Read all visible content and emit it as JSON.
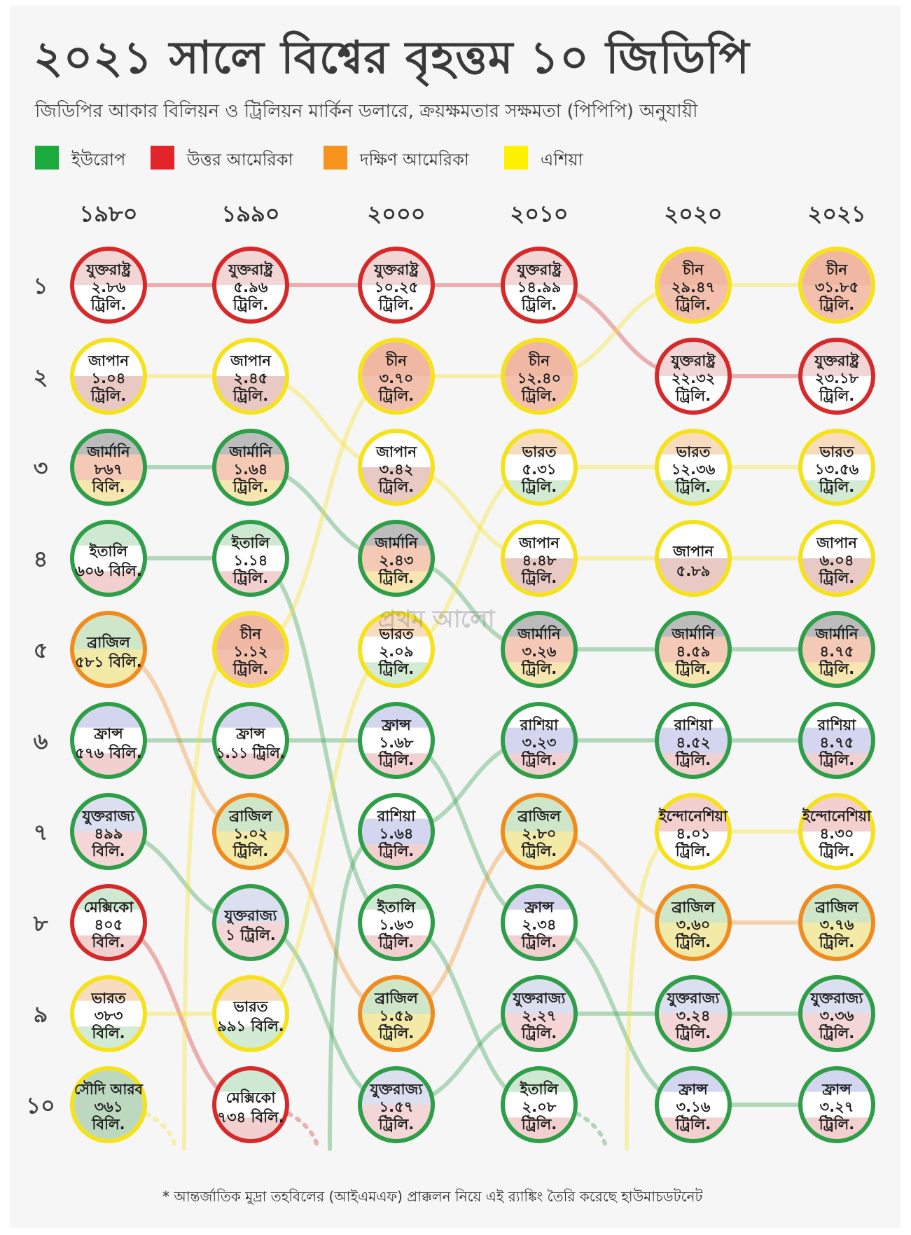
{
  "title": "২০২১ সালে বিশ্বের বৃহত্তম ১০ জিডিপি",
  "subtitle": "জিডিপির আকার বিলিয়ন ও ট্রিলিয়ন মার্কিন ডলারে, ক্রয়ক্ষমতার সক্ষমতা (পিপিপি) অনুযায়ী",
  "legend": [
    {
      "label": "ইউরোপ",
      "color": "#1aab3c"
    },
    {
      "label": "উত্তর আমেরিকা",
      "color": "#e4242b"
    },
    {
      "label": "দক্ষিণ আমেরিকা",
      "color": "#f7941d"
    },
    {
      "label": "এশিয়া",
      "color": "#fff200"
    }
  ],
  "watermark": "প্রথম আলো",
  "footnote": "* আন্তর্জাতিক মুদ্রা তহবিলের (আইএমএফ) প্রাক্কলন নিয়ে এই র‌্যাঙ্কিং তৈরি করেছে হাউমাচডটনেট",
  "region_colors": {
    "europe": "#2e9e48",
    "north_america": "#d62a2a",
    "south_america": "#f08c1e",
    "asia": "#f5e21a"
  },
  "chart_data": {
    "type": "table",
    "years": [
      "১৯৮০",
      "১৯৯০",
      "২০০০",
      "২০১০",
      "২০২০",
      "২০২১"
    ],
    "ranks": [
      "১",
      "২",
      "৩",
      "৪",
      "৫",
      "৬",
      "৭",
      "৮",
      "৯",
      "১০"
    ],
    "columns": [
      [
        {
          "country": "যুক্তরাষ্ট্র",
          "value": "২.৮৬",
          "unit": "ট্রিলি.",
          "region": "north_america",
          "gdp_billion_usd": 2860
        },
        {
          "country": "জাপান",
          "value": "১.০৪",
          "unit": "ট্রিলি.",
          "region": "asia",
          "gdp_billion_usd": 1040
        },
        {
          "country": "জার্মানি",
          "value": "৮৬৭",
          "unit": "বিলি.",
          "region": "europe",
          "gdp_billion_usd": 867
        },
        {
          "country": "ইতালি",
          "value": "৬০৬ বিলি.",
          "unit": "",
          "region": "europe",
          "gdp_billion_usd": 606
        },
        {
          "country": "ব্রাজিল",
          "value": "৫৮১ বিলি.",
          "unit": "",
          "region": "south_america",
          "gdp_billion_usd": 581
        },
        {
          "country": "ফ্রান্স",
          "value": "৫৭৬ বিলি.",
          "unit": "",
          "region": "europe",
          "gdp_billion_usd": 576
        },
        {
          "country": "যুক্তরাজ্য",
          "value": "৪৯৯",
          "unit": "বিলি.",
          "region": "europe",
          "gdp_billion_usd": 499
        },
        {
          "country": "মেক্সিকো",
          "value": "৪০৫",
          "unit": "বিলি.",
          "region": "north_america",
          "gdp_billion_usd": 405
        },
        {
          "country": "ভারত",
          "value": "৩৮৩",
          "unit": "বিলি.",
          "region": "asia",
          "gdp_billion_usd": 383
        },
        {
          "country": "সৌদি আরব",
          "value": "৩৬১",
          "unit": "বিলি.",
          "region": "asia",
          "gdp_billion_usd": 361
        }
      ],
      [
        {
          "country": "যুক্তরাষ্ট্র",
          "value": "৫.৯৬",
          "unit": "ট্রিলি.",
          "region": "north_america",
          "gdp_billion_usd": 5960
        },
        {
          "country": "জাপান",
          "value": "২.৪৫",
          "unit": "ট্রিলি.",
          "region": "asia",
          "gdp_billion_usd": 2450
        },
        {
          "country": "জার্মানি",
          "value": "১.৬৪",
          "unit": "ট্রিলি.",
          "region": "europe",
          "gdp_billion_usd": 1640
        },
        {
          "country": "ইতালি",
          "value": "১.১৪",
          "unit": "ট্রিলি.",
          "region": "europe",
          "gdp_billion_usd": 1140
        },
        {
          "country": "চীন",
          "value": "১.১২",
          "unit": "ট্রিলি.",
          "region": "asia",
          "gdp_billion_usd": 1120
        },
        {
          "country": "ফ্রান্স",
          "value": "১.১১ ট্রিলি.",
          "unit": "",
          "region": "europe",
          "gdp_billion_usd": 1110
        },
        {
          "country": "ব্রাজিল",
          "value": "১.০২",
          "unit": "ট্রিলি.",
          "region": "south_america",
          "gdp_billion_usd": 1020
        },
        {
          "country": "যুক্তরাজ্য",
          "value": "১ ট্রিলি.",
          "unit": "",
          "region": "europe",
          "gdp_billion_usd": 1000
        },
        {
          "country": "ভারত",
          "value": "৯৯১ বিলি.",
          "unit": "",
          "region": "asia",
          "gdp_billion_usd": 991
        },
        {
          "country": "মেক্সিকো",
          "value": "৭৩৪ বিলি.",
          "unit": "",
          "region": "north_america",
          "gdp_billion_usd": 734
        }
      ],
      [
        {
          "country": "যুক্তরাষ্ট্র",
          "value": "১০.২৫",
          "unit": "ট্রিলি.",
          "region": "north_america",
          "gdp_billion_usd": 10250
        },
        {
          "country": "চীন",
          "value": "৩.৭০",
          "unit": "ট্রিলি.",
          "region": "asia",
          "gdp_billion_usd": 3700
        },
        {
          "country": "জাপান",
          "value": "৩.৪২",
          "unit": "ট্রিলি.",
          "region": "asia",
          "gdp_billion_usd": 3420
        },
        {
          "country": "জার্মানি",
          "value": "২.৪৩",
          "unit": "ট্রিলি.",
          "region": "europe",
          "gdp_billion_usd": 2430
        },
        {
          "country": "ভারত",
          "value": "২.০৯",
          "unit": "ট্রিলি.",
          "region": "asia",
          "gdp_billion_usd": 2090
        },
        {
          "country": "ফ্রান্স",
          "value": "১.৬৮",
          "unit": "ট্রিলি.",
          "region": "europe",
          "gdp_billion_usd": 1680
        },
        {
          "country": "রাশিয়া",
          "value": "১.৬৪",
          "unit": "ট্রিলি.",
          "region": "europe",
          "gdp_billion_usd": 1640
        },
        {
          "country": "ইতালি",
          "value": "১.৬৩",
          "unit": "ট্রিলি.",
          "region": "europe",
          "gdp_billion_usd": 1630
        },
        {
          "country": "ব্রাজিল",
          "value": "১.৫৯",
          "unit": "ট্রিলি.",
          "region": "south_america",
          "gdp_billion_usd": 1590
        },
        {
          "country": "যুক্তরাজ্য",
          "value": "১.৫৭",
          "unit": "ট্রিলি.",
          "region": "europe",
          "gdp_billion_usd": 1570
        }
      ],
      [
        {
          "country": "যুক্তরাষ্ট্র",
          "value": "১৪.৯৯",
          "unit": "ট্রিলি.",
          "region": "north_america",
          "gdp_billion_usd": 14990
        },
        {
          "country": "চীন",
          "value": "১২.৪০",
          "unit": "ট্রিলি.",
          "region": "asia",
          "gdp_billion_usd": 12400
        },
        {
          "country": "ভারত",
          "value": "৫.৩১",
          "unit": "ট্রিলি.",
          "region": "asia",
          "gdp_billion_usd": 5310
        },
        {
          "country": "জাপান",
          "value": "৪.৪৮",
          "unit": "ট্রিলি.",
          "region": "asia",
          "gdp_billion_usd": 4480
        },
        {
          "country": "জার্মানি",
          "value": "৩.২৬",
          "unit": "ট্রিলি.",
          "region": "europe",
          "gdp_billion_usd": 3260
        },
        {
          "country": "রাশিয়া",
          "value": "৩.২৩",
          "unit": "ট্রিলি.",
          "region": "europe",
          "gdp_billion_usd": 3230
        },
        {
          "country": "ব্রাজিল",
          "value": "২.৮০",
          "unit": "ট্রিলি.",
          "region": "south_america",
          "gdp_billion_usd": 2800
        },
        {
          "country": "ফ্রান্স",
          "value": "২.৩৪",
          "unit": "ট্রিলি.",
          "region": "europe",
          "gdp_billion_usd": 2340
        },
        {
          "country": "যুক্তরাজ্য",
          "value": "২.২৭",
          "unit": "ট্রিলি.",
          "region": "europe",
          "gdp_billion_usd": 2270
        },
        {
          "country": "ইতালি",
          "value": "২.০৮",
          "unit": "ট্রিলি.",
          "region": "europe",
          "gdp_billion_usd": 2080
        }
      ],
      [
        {
          "country": "চীন",
          "value": "২৯.৪৭",
          "unit": "ট্রিলি.",
          "region": "asia",
          "gdp_billion_usd": 29470
        },
        {
          "country": "যুক্তরাষ্ট্র",
          "value": "২২.৩২",
          "unit": "ট্রিলি.",
          "region": "north_america",
          "gdp_billion_usd": 22320
        },
        {
          "country": "ভারত",
          "value": "১২.৩৬",
          "unit": "ট্রিলি.",
          "region": "asia",
          "gdp_billion_usd": 12360
        },
        {
          "country": "জাপান",
          "value": "৫.৮৯",
          "unit": "",
          "region": "asia",
          "gdp_billion_usd": 5890
        },
        {
          "country": "জার্মানি",
          "value": "৪.৫৯",
          "unit": "ট্রিলি.",
          "region": "europe",
          "gdp_billion_usd": 4590
        },
        {
          "country": "রাশিয়া",
          "value": "৪.৫২",
          "unit": "ট্রিলি.",
          "region": "europe",
          "gdp_billion_usd": 4520
        },
        {
          "country": "ইন্দোনেশিয়া",
          "value": "৪.০১",
          "unit": "ট্রিলি.",
          "region": "asia",
          "gdp_billion_usd": 4010
        },
        {
          "country": "ব্রাজিল",
          "value": "৩.৬০",
          "unit": "ট্রিলি.",
          "region": "south_america",
          "gdp_billion_usd": 3600
        },
        {
          "country": "যুক্তরাজ্য",
          "value": "৩.২৪",
          "unit": "ট্রিলি.",
          "region": "europe",
          "gdp_billion_usd": 3240
        },
        {
          "country": "ফ্রান্স",
          "value": "৩.১৬",
          "unit": "ট্রিলি.",
          "region": "europe",
          "gdp_billion_usd": 3160
        }
      ],
      [
        {
          "country": "চীন",
          "value": "৩১.৮৫",
          "unit": "ট্রিলি.",
          "region": "asia",
          "gdp_billion_usd": 31850
        },
        {
          "country": "যুক্তরাষ্ট্র",
          "value": "২৩.১৮",
          "unit": "ট্রিলি.",
          "region": "north_america",
          "gdp_billion_usd": 23180
        },
        {
          "country": "ভারত",
          "value": "১৩.৫৬",
          "unit": "ট্রিলি.",
          "region": "asia",
          "gdp_billion_usd": 13560
        },
        {
          "country": "জাপান",
          "value": "৬.০৪",
          "unit": "ট্রিলি.",
          "region": "asia",
          "gdp_billion_usd": 6040
        },
        {
          "country": "জার্মানি",
          "value": "৪.৭৫",
          "unit": "ট্রিলি.",
          "region": "europe",
          "gdp_billion_usd": 4750
        },
        {
          "country": "রাশিয়া",
          "value": "৪.৭৫",
          "unit": "ট্রিলি.",
          "region": "europe",
          "gdp_billion_usd": 4750
        },
        {
          "country": "ইন্দোনেশিয়া",
          "value": "৪.৩০",
          "unit": "ট্রিলি.",
          "region": "asia",
          "gdp_billion_usd": 4300
        },
        {
          "country": "ব্রাজিল",
          "value": "৩.৭৬",
          "unit": "ট্রিলি.",
          "region": "south_america",
          "gdp_billion_usd": 3760
        },
        {
          "country": "যুক্তরাজ্য",
          "value": "৩.৩৬",
          "unit": "ট্রিলি.",
          "region": "europe",
          "gdp_billion_usd": 3360
        },
        {
          "country": "ফ্রান্স",
          "value": "৩.২৭",
          "unit": "ট্রিলি.",
          "region": "europe",
          "gdp_billion_usd": 3270
        }
      ]
    ]
  }
}
